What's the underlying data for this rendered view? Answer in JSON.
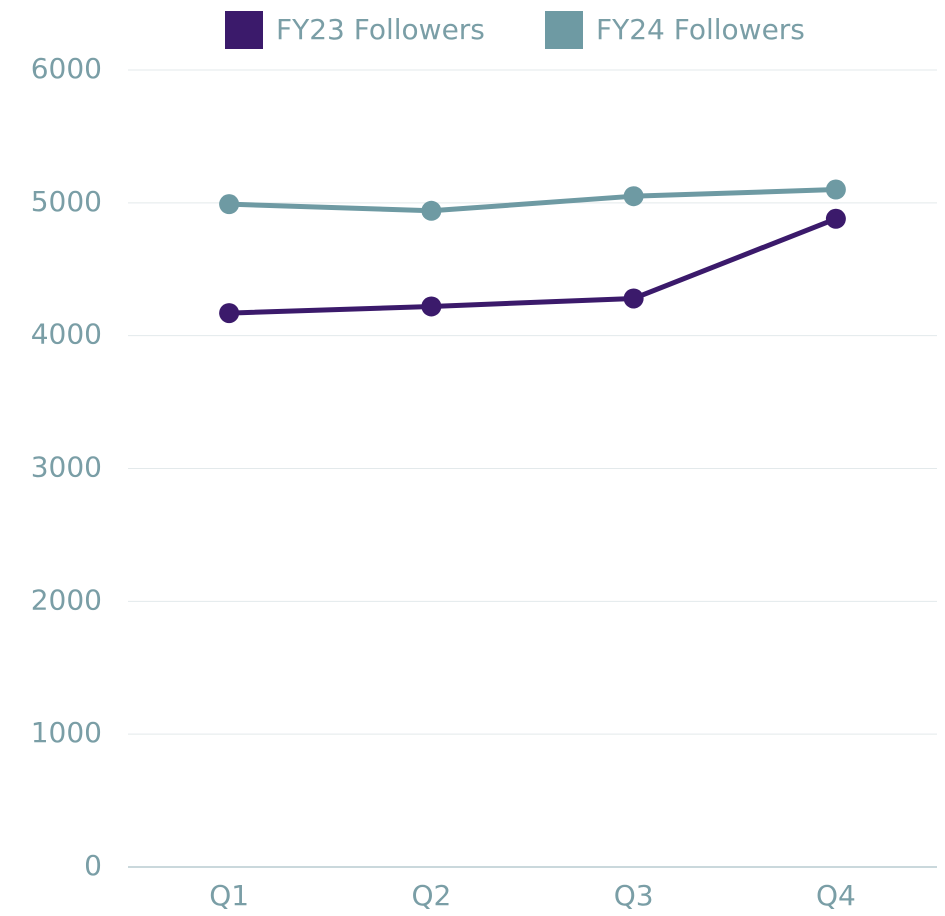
{
  "chart_data": {
    "type": "line",
    "categories": [
      "Q1",
      "Q2",
      "Q3",
      "Q4"
    ],
    "series": [
      {
        "name": "FY23 Followers",
        "color": "#3b1a6b",
        "values": [
          4170,
          4220,
          4280,
          4880
        ]
      },
      {
        "name": "FY24 Followers",
        "color": "#6e9aa3",
        "values": [
          4990,
          4940,
          5050,
          5100
        ]
      }
    ],
    "ylim": [
      0,
      6000
    ],
    "yticks": [
      0,
      1000,
      2000,
      3000,
      4000,
      5000,
      6000
    ],
    "grid": true,
    "legend": "top"
  }
}
